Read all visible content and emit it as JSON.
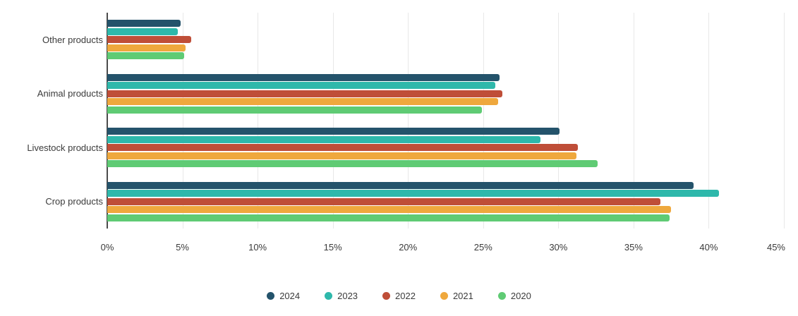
{
  "page": {
    "background": "#ffffff",
    "text_color": "#3b3b3b"
  },
  "chart_data": {
    "type": "bar",
    "orientation": "horizontal",
    "title": "",
    "xlabel": "",
    "ylabel": "",
    "categories": [
      "Other products",
      "Animal products",
      "Livestock products",
      "Crop products"
    ],
    "series": [
      {
        "name": "2024",
        "color": "#24536b",
        "values": [
          4.9,
          26.1,
          30.1,
          39.0
        ]
      },
      {
        "name": "2023",
        "color": "#2eb8ab",
        "values": [
          4.7,
          25.8,
          28.8,
          40.7
        ]
      },
      {
        "name": "2022",
        "color": "#bf4e38",
        "values": [
          5.6,
          26.3,
          31.3,
          36.8
        ]
      },
      {
        "name": "2021",
        "color": "#efa83d",
        "values": [
          5.2,
          26.0,
          31.2,
          37.5
        ]
      },
      {
        "name": "2020",
        "color": "#5fcb74",
        "values": [
          5.1,
          24.9,
          32.6,
          37.4
        ]
      }
    ],
    "xlim": [
      0,
      45
    ],
    "x_ticks": [
      {
        "value": 0,
        "label": "0%"
      },
      {
        "value": 5,
        "label": "5%"
      },
      {
        "value": 10,
        "label": "10%"
      },
      {
        "value": 15,
        "label": "15%"
      },
      {
        "value": 20,
        "label": "20%"
      },
      {
        "value": 25,
        "label": "25%"
      },
      {
        "value": 30,
        "label": "30%"
      },
      {
        "value": 35,
        "label": "35%"
      },
      {
        "value": 40,
        "label": "40%"
      },
      {
        "value": 45,
        "label": "45%"
      }
    ],
    "grid": "vertical",
    "gridline_color": "#e8e8e8",
    "axis_line_color": "#4b4b4b",
    "legend_position": "bottom",
    "legend": [
      "2024",
      "2023",
      "2022",
      "2021",
      "2020"
    ],
    "unit": "percent"
  }
}
